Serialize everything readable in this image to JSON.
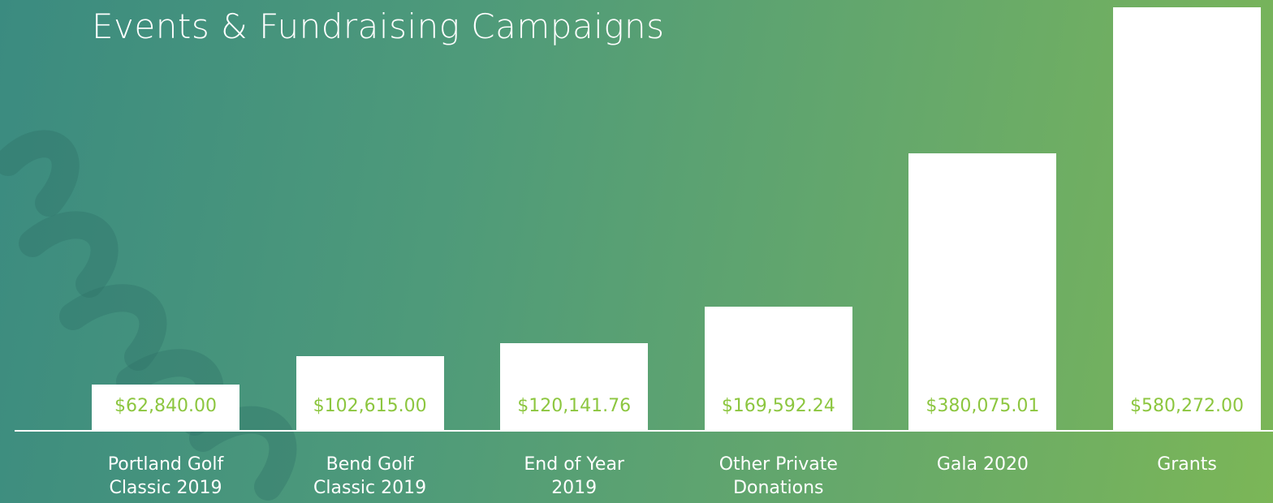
{
  "chart_data": {
    "type": "bar",
    "title": "Events & Fundraising Campaigns",
    "categories": [
      "Portland Golf Classic 2019",
      "Bend Golf Classic 2019",
      "End of Year 2019",
      "Other Private Donations",
      "Gala 2020",
      "Grants"
    ],
    "values": [
      62840,
      102615,
      120141.76,
      169592.24,
      380075.01,
      580272
    ],
    "value_labels": [
      "$62,840.00",
      "$102,615.00",
      "$120,141.76",
      "$169,592.24",
      "$380,075.01",
      "$580,272.00"
    ],
    "color": "#ffffff",
    "label_color": "#8cc63f"
  }
}
